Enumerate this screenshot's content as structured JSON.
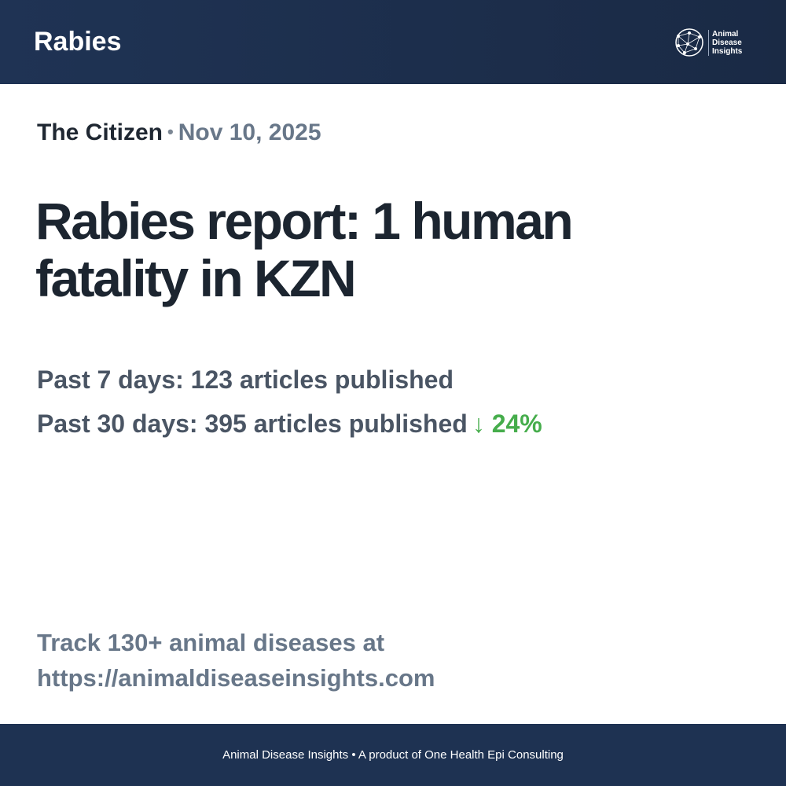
{
  "header": {
    "title": "Rabies",
    "logo_text": [
      "Animal",
      "Disease",
      "Insights"
    ],
    "logo_icon": "network-globe-icon"
  },
  "article": {
    "source": "The Citizen",
    "separator": "•",
    "date": "Nov 10, 2025",
    "headline": "Rabies report: 1 human fatality in KZN"
  },
  "stats": {
    "past_7": "Past 7 days: 123 articles published",
    "past_30": "Past 30 days: 395 articles published",
    "trend_arrow": "↓",
    "trend_value": "24%",
    "trend_color": "#46ad4c"
  },
  "cta": {
    "line1": "Track 130+ animal diseases at",
    "line2": "https://animaldiseaseinsights.com"
  },
  "footer": {
    "text": "Animal Disease Insights • A product of One Health Epi Consulting"
  }
}
